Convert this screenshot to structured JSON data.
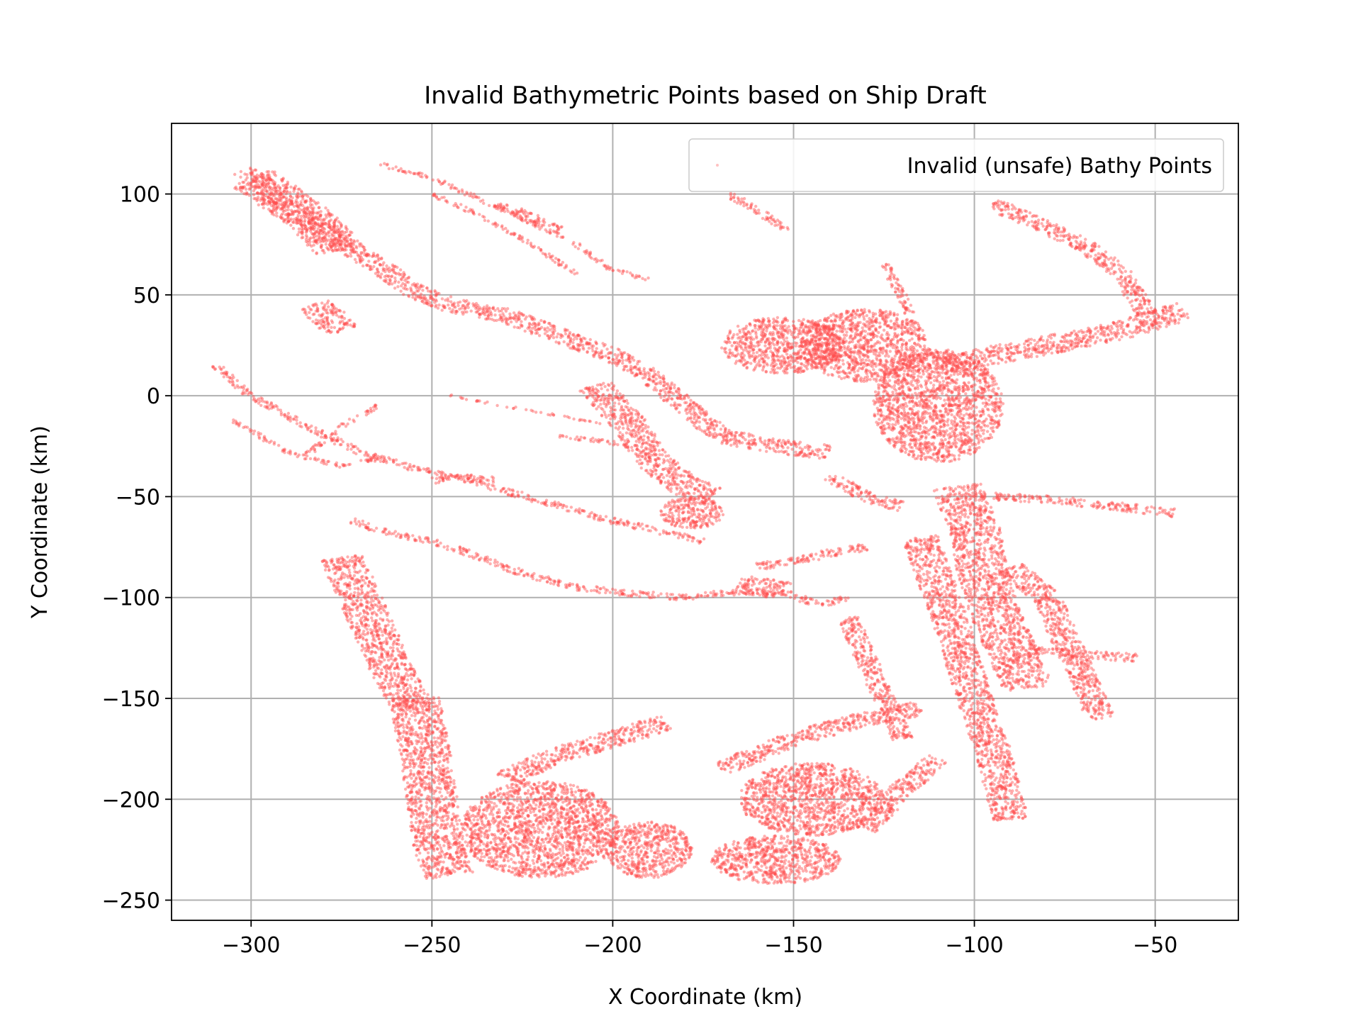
{
  "chart_data": {
    "type": "scatter",
    "title": "Invalid Bathymetric Points based on Ship Draft",
    "xlabel": "X Coordinate (km)",
    "ylabel": "Y Coordinate (km)",
    "xlim": [
      -322,
      -27
    ],
    "ylim": [
      -260,
      135
    ],
    "xticks": [
      -300,
      -250,
      -200,
      -150,
      -100,
      -50
    ],
    "yticks": [
      100,
      50,
      0,
      -50,
      -100,
      -150,
      -200,
      -250
    ],
    "xtick_labels": [
      "−300",
      "−250",
      "−200",
      "−150",
      "−100",
      "−50"
    ],
    "ytick_labels": [
      "100",
      "50",
      "0",
      "−50",
      "−100",
      "−150",
      "−200",
      "−250"
    ],
    "grid": true,
    "legend_position": "top-right",
    "series": [
      {
        "name": "Invalid (unsafe) Bathy Points",
        "color": "#ff4d4d",
        "marker": "dot",
        "regions": [
          {
            "kind": "band",
            "points": [
              [
                -302,
                112
              ],
              [
                -290,
                95
              ],
              [
                -275,
                75
              ],
              [
                -265,
                65
              ],
              [
                -255,
                52
              ],
              [
                -245,
                45
              ],
              [
                -230,
                40
              ],
              [
                -215,
                30
              ],
              [
                -200,
                20
              ],
              [
                -190,
                10
              ],
              [
                -180,
                -5
              ],
              [
                -170,
                -20
              ],
              [
                -155,
                -25
              ],
              [
                -140,
                -28
              ]
            ],
            "width": 7
          },
          {
            "kind": "band",
            "points": [
              [
                -300,
                108
              ],
              [
                -285,
                90
              ],
              [
                -275,
                72
              ]
            ],
            "width": 14
          },
          {
            "kind": "band",
            "points": [
              [
                -283,
                45
              ],
              [
                -278,
                38
              ],
              [
                -275,
                32
              ]
            ],
            "width": 10
          },
          {
            "kind": "band",
            "points": [
              [
                -310,
                15
              ],
              [
                -300,
                0
              ],
              [
                -285,
                -15
              ],
              [
                -270,
                -28
              ],
              [
                -255,
                -36
              ],
              [
                -240,
                -42
              ],
              [
                -220,
                -52
              ],
              [
                -200,
                -62
              ],
              [
                -185,
                -68
              ],
              [
                -175,
                -72
              ]
            ],
            "width": 3
          },
          {
            "kind": "band",
            "points": [
              [
                -305,
                -12
              ],
              [
                -290,
                -28
              ],
              [
                -275,
                -35
              ],
              [
                -262,
                -30
              ]
            ],
            "width": 2
          },
          {
            "kind": "band",
            "points": [
              [
                -285,
                -30
              ],
              [
                -275,
                -15
              ],
              [
                -265,
                -5
              ]
            ],
            "width": 2
          },
          {
            "kind": "band",
            "points": [
              [
                -250,
                -42
              ],
              [
                -240,
                -40
              ],
              [
                -232,
                -42
              ]
            ],
            "width": 3
          },
          {
            "kind": "band",
            "points": [
              [
                -272,
                -62
              ],
              [
                -262,
                -68
              ],
              [
                -250,
                -72
              ],
              [
                -240,
                -78
              ],
              [
                -225,
                -88
              ],
              [
                -210,
                -95
              ],
              [
                -195,
                -98
              ],
              [
                -180,
                -100
              ],
              [
                -165,
                -97
              ],
              [
                -152,
                -98
              ],
              [
                -142,
                -104
              ],
              [
                -135,
                -100
              ]
            ],
            "width": 3
          },
          {
            "kind": "band",
            "points": [
              [
                -165,
                -93
              ],
              [
                -158,
                -95
              ],
              [
                -152,
                -97
              ]
            ],
            "width": 9
          },
          {
            "kind": "band",
            "points": [
              [
                -275,
                -80
              ],
              [
                -270,
                -100
              ],
              [
                -265,
                -120
              ],
              [
                -260,
                -140
              ],
              [
                -255,
                -155
              ]
            ],
            "width": 12
          },
          {
            "kind": "band",
            "points": [
              [
                -255,
                -150
              ],
              [
                -252,
                -175
              ],
              [
                -250,
                -200
              ],
              [
                -248,
                -225
              ],
              [
                -245,
                -238
              ]
            ],
            "width": 14
          },
          {
            "kind": "blob",
            "center": [
              -220,
              -215
            ],
            "rx": 22,
            "ry": 24
          },
          {
            "kind": "blob",
            "center": [
              -190,
              -225
            ],
            "rx": 12,
            "ry": 14
          },
          {
            "kind": "band",
            "points": [
              [
                -230,
                -190
              ],
              [
                -215,
                -178
              ],
              [
                -200,
                -170
              ],
              [
                -185,
                -162
              ]
            ],
            "width": 8
          },
          {
            "kind": "blob",
            "center": [
              -155,
              -230
            ],
            "rx": 18,
            "ry": 12
          },
          {
            "kind": "blob",
            "center": [
              -145,
              -200
            ],
            "rx": 20,
            "ry": 18
          },
          {
            "kind": "band",
            "points": [
              [
                -170,
                -185
              ],
              [
                -150,
                -170
              ],
              [
                -130,
                -160
              ],
              [
                -115,
                -155
              ]
            ],
            "width": 7
          },
          {
            "kind": "band",
            "points": [
              [
                -130,
                -215
              ],
              [
                -120,
                -195
              ],
              [
                -110,
                -180
              ]
            ],
            "width": 7
          },
          {
            "kind": "blob",
            "center": [
              -153,
              25
            ],
            "rx": 17,
            "ry": 14
          },
          {
            "kind": "blob",
            "center": [
              -130,
              25
            ],
            "rx": 18,
            "ry": 18
          },
          {
            "kind": "blob",
            "center": [
              -110,
              -5
            ],
            "rx": 18,
            "ry": 28
          },
          {
            "kind": "band",
            "points": [
              [
                -110,
                15
              ],
              [
                -95,
                20
              ],
              [
                -80,
                25
              ],
              [
                -60,
                32
              ],
              [
                -42,
                42
              ]
            ],
            "width": 9
          },
          {
            "kind": "band",
            "points": [
              [
                -95,
                95
              ],
              [
                -82,
                85
              ],
              [
                -70,
                75
              ],
              [
                -60,
                62
              ],
              [
                -52,
                40
              ]
            ],
            "width": 6
          },
          {
            "kind": "band",
            "points": [
              [
                -125,
                65
              ],
              [
                -120,
                50
              ],
              [
                -118,
                40
              ]
            ],
            "width": 3
          },
          {
            "kind": "band",
            "points": [
              [
                -205,
                5
              ],
              [
                -195,
                -15
              ],
              [
                -190,
                -30
              ],
              [
                -180,
                -45
              ],
              [
                -172,
                -50
              ]
            ],
            "width": 10
          },
          {
            "kind": "blob",
            "center": [
              -178,
              -58
            ],
            "rx": 9,
            "ry": 8
          },
          {
            "kind": "band",
            "points": [
              [
                -105,
                -45
              ],
              [
                -100,
                -65
              ],
              [
                -98,
                -85
              ],
              [
                -95,
                -105
              ],
              [
                -90,
                -125
              ],
              [
                -85,
                -145
              ]
            ],
            "width": 14
          },
          {
            "kind": "band",
            "points": [
              [
                -115,
                -70
              ],
              [
                -110,
                -95
              ],
              [
                -105,
                -120
              ],
              [
                -100,
                -150
              ],
              [
                -95,
                -175
              ],
              [
                -90,
                -210
              ]
            ],
            "width": 10
          },
          {
            "kind": "band",
            "points": [
              [
                -90,
                -85
              ],
              [
                -80,
                -100
              ],
              [
                -75,
                -120
              ],
              [
                -70,
                -140
              ],
              [
                -65,
                -160
              ]
            ],
            "width": 8
          },
          {
            "kind": "band",
            "points": [
              [
                -95,
                -50
              ],
              [
                -75,
                -52
              ],
              [
                -60,
                -55
              ],
              [
                -45,
                -58
              ]
            ],
            "width": 4
          },
          {
            "kind": "band",
            "points": [
              [
                -85,
                -125
              ],
              [
                -70,
                -128
              ],
              [
                -55,
                -130
              ]
            ],
            "width": 4
          },
          {
            "kind": "band",
            "points": [
              [
                -160,
                -85
              ],
              [
                -150,
                -82
              ],
              [
                -140,
                -78
              ],
              [
                -130,
                -75
              ]
            ],
            "width": 4
          },
          {
            "kind": "band",
            "points": [
              [
                -135,
                -110
              ],
              [
                -130,
                -130
              ],
              [
                -125,
                -150
              ],
              [
                -120,
                -170
              ]
            ],
            "width": 6
          },
          {
            "kind": "band",
            "points": [
              [
                -168,
                100
              ],
              [
                -160,
                92
              ],
              [
                -152,
                82
              ]
            ],
            "width": 3
          },
          {
            "kind": "band",
            "points": [
              [
                -265,
                115
              ],
              [
                -250,
                108
              ],
              [
                -240,
                100
              ],
              [
                -225,
                88
              ],
              [
                -210,
                75
              ],
              [
                -200,
                62
              ],
              [
                -190,
                58
              ]
            ],
            "width": 2
          },
          {
            "kind": "band",
            "points": [
              [
                -250,
                100
              ],
              [
                -240,
                92
              ],
              [
                -225,
                78
              ],
              [
                -210,
                60
              ]
            ],
            "width": 2
          },
          {
            "kind": "band",
            "points": [
              [
                -232,
                95
              ],
              [
                -222,
                88
              ],
              [
                -215,
                82
              ]
            ],
            "width": 4
          },
          {
            "kind": "band",
            "points": [
              [
                -245,
                0
              ],
              [
                -230,
                -5
              ],
              [
                -215,
                -10
              ],
              [
                -200,
                -15
              ]
            ],
            "width": 1
          },
          {
            "kind": "band",
            "points": [
              [
                -140,
                -40
              ],
              [
                -130,
                -50
              ],
              [
                -120,
                -55
              ]
            ],
            "width": 5
          },
          {
            "kind": "band",
            "points": [
              [
                -215,
                -20
              ],
              [
                -205,
                -22
              ],
              [
                -195,
                -25
              ]
            ],
            "width": 2
          }
        ]
      }
    ]
  }
}
